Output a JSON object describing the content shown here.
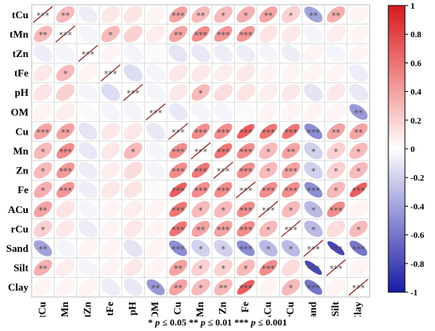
{
  "chart_data": {
    "type": "heatmap",
    "subtype": "correlation-ellipse-matrix",
    "variables": [
      "tCu",
      "tMn",
      "tZn",
      "tFe",
      "pH",
      "OM",
      "Cu",
      "Mn",
      "Zn",
      "Fe",
      "ACu",
      "rCu",
      "Sand",
      "Silt",
      "Clay"
    ],
    "matrix": [
      [
        1,
        0.3,
        -0.08,
        0.1,
        0.12,
        0.05,
        0.4,
        0.3,
        0.3,
        0.35,
        0.4,
        0.2,
        -0.4,
        0.35,
        0.05
      ],
      [
        0.3,
        1,
        -0.05,
        0.3,
        0.2,
        0.08,
        0.4,
        0.5,
        0.45,
        0.45,
        0.12,
        0.1,
        -0.05,
        0.08,
        0.05
      ],
      [
        -0.08,
        -0.05,
        1,
        0.05,
        -0.05,
        -0.02,
        -0.12,
        -0.1,
        -0.08,
        -0.08,
        -0.05,
        -0.08,
        0.05,
        -0.05,
        0.05
      ],
      [
        0.1,
        0.3,
        0.05,
        1,
        -0.15,
        -0.05,
        0.1,
        0.1,
        0.08,
        0.1,
        0.05,
        0.05,
        0.05,
        0.05,
        -0.08
      ],
      [
        0.12,
        0.2,
        -0.05,
        -0.15,
        1,
        -0.05,
        0.1,
        0.3,
        0.15,
        0.12,
        0.08,
        0.1,
        -0.12,
        0.1,
        -0.1
      ],
      [
        0.05,
        0.08,
        -0.02,
        -0.05,
        -0.05,
        1,
        -0.1,
        -0.05,
        -0.05,
        -0.02,
        0.05,
        0.05,
        0.05,
        0.05,
        -0.45
      ],
      [
        0.4,
        0.4,
        -0.12,
        0.1,
        0.1,
        -0.1,
        1,
        0.5,
        0.5,
        0.7,
        0.6,
        0.6,
        -0.5,
        0.4,
        0.4
      ],
      [
        0.3,
        0.5,
        -0.1,
        0.1,
        0.3,
        -0.05,
        0.5,
        1,
        0.6,
        0.5,
        0.3,
        0.4,
        -0.2,
        0.2,
        0.3
      ],
      [
        0.3,
        0.45,
        -0.08,
        0.08,
        0.15,
        -0.05,
        0.5,
        0.6,
        1,
        0.5,
        0.3,
        0.4,
        -0.2,
        0.2,
        0.3
      ],
      [
        0.35,
        0.45,
        -0.08,
        0.1,
        0.12,
        -0.02,
        0.7,
        0.5,
        0.5,
        1,
        0.5,
        0.5,
        -0.5,
        0.3,
        0.7
      ],
      [
        0.4,
        0.12,
        -0.05,
        0.05,
        0.08,
        0.05,
        0.6,
        0.3,
        0.3,
        0.5,
        1,
        0.3,
        -0.3,
        0.5,
        0.05
      ],
      [
        0.2,
        0.1,
        -0.08,
        0.05,
        0.1,
        0.05,
        0.6,
        0.4,
        0.4,
        0.5,
        0.3,
        1,
        -0.3,
        0.15,
        0.3
      ],
      [
        -0.4,
        -0.05,
        0.05,
        0.05,
        -0.12,
        0.05,
        -0.5,
        -0.2,
        -0.2,
        -0.5,
        -0.3,
        -0.3,
        1,
        -0.8,
        -0.6
      ],
      [
        0.35,
        0.08,
        -0.05,
        0.05,
        0.1,
        0.05,
        0.4,
        0.2,
        0.2,
        0.3,
        0.5,
        0.15,
        -0.8,
        1,
        0.05
      ],
      [
        0.05,
        0.05,
        0.05,
        -0.08,
        -0.1,
        -0.45,
        0.4,
        0.3,
        0.3,
        0.7,
        0.05,
        0.3,
        -0.6,
        0.05,
        1
      ]
    ],
    "significance": [
      [
        "***",
        "**",
        "",
        "",
        "",
        "",
        "***",
        "**",
        "*",
        "*",
        "**",
        "*",
        "**",
        "**",
        ""
      ],
      [
        "**",
        "***",
        "",
        "*",
        "",
        "",
        "**",
        "***",
        "***",
        "***",
        "",
        "",
        "",
        "",
        ""
      ],
      [
        "",
        "",
        "***",
        "",
        "",
        "",
        "",
        "",
        "",
        "",
        "",
        "",
        "",
        "",
        ""
      ],
      [
        "",
        "*",
        "",
        "***",
        "",
        "",
        "",
        "",
        "",
        "",
        "",
        "",
        "",
        "",
        ""
      ],
      [
        "",
        "",
        "",
        "",
        "***",
        "",
        "",
        "*",
        "",
        "",
        "",
        "",
        "",
        "",
        ""
      ],
      [
        "",
        "",
        "",
        "",
        "",
        "***",
        "",
        "",
        "",
        "",
        "",
        "",
        "",
        "",
        "**"
      ],
      [
        "***",
        "**",
        "",
        "",
        "",
        "",
        "***",
        "***",
        "***",
        "***",
        "***",
        "***",
        "***",
        "**",
        "**"
      ],
      [
        "*",
        "***",
        "",
        "",
        "*",
        "",
        "***",
        "***",
        "***",
        "***",
        "*",
        "**",
        "*",
        "*",
        "*"
      ],
      [
        "*",
        "***",
        "",
        "",
        "",
        "",
        "***",
        "***",
        "***",
        "***",
        "*",
        "***",
        "*",
        "*",
        "*"
      ],
      [
        "*",
        "***",
        "",
        "",
        "",
        "",
        "***",
        "***",
        "***",
        "***",
        "***",
        "***",
        "***",
        "*",
        "***"
      ],
      [
        "**",
        "",
        "",
        "",
        "",
        "",
        "***",
        "*",
        "*",
        "***",
        "***",
        "*",
        "*",
        "***",
        ""
      ],
      [
        "*",
        "",
        "",
        "",
        "",
        "",
        "***",
        "**",
        "***",
        "***",
        "*",
        "***",
        "*",
        "",
        "*"
      ],
      [
        "**",
        "",
        "",
        "",
        "",
        "",
        "***",
        "*",
        "*",
        "***",
        "*",
        "*",
        "***",
        "***",
        "***"
      ],
      [
        "**",
        "",
        "",
        "",
        "",
        "",
        "**",
        "*",
        "*",
        "*",
        "***",
        "",
        "***",
        "***",
        ""
      ],
      [
        "",
        "",
        "",
        "",
        "",
        "**",
        "**",
        "*",
        "**",
        "***",
        "",
        "*",
        "***",
        "",
        "***"
      ]
    ],
    "colorbar": {
      "min": -1,
      "max": 1,
      "ticks": [
        "1",
        "0.8",
        "0.6",
        "0.4",
        "0.2",
        "0",
        "-0.2",
        "-0.4",
        "-0.6",
        "-0.8",
        "-1"
      ]
    },
    "colors": {
      "positive": "#e41a1c",
      "negative": "#1a1aa6",
      "neutral": "#ffffff",
      "diagonal_line": "#8b1a1a"
    }
  },
  "footnote": {
    "p1": "p",
    "t1": " ≤ 0.05 ",
    "s1": "*",
    "p2": "p",
    "t2": " ≤ 0.01 ",
    "s2": "**",
    "p3": "p",
    "t3": " ≤ 0.001",
    "s3": "***"
  }
}
